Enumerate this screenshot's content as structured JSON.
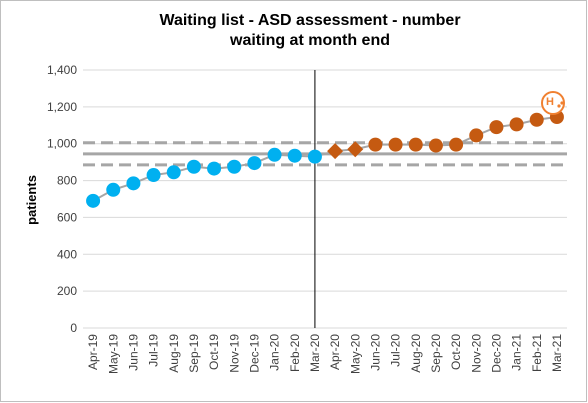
{
  "chart_data": {
    "type": "spc",
    "title": [
      "Waiting list - ASD assessment - number",
      "waiting at month end"
    ],
    "y_label": "patients",
    "categories": [
      "Apr-19",
      "May-19",
      "Jun-19",
      "Jul-19",
      "Aug-19",
      "Sep-19",
      "Oct-19",
      "Nov-19",
      "Dec-19",
      "Jan-20",
      "Feb-20",
      "Mar-20",
      "Apr-20",
      "May-20",
      "Jun-20",
      "Jul-20",
      "Aug-20",
      "Sep-20",
      "Oct-20",
      "Nov-20",
      "Dec-20",
      "Jan-21",
      "Feb-21",
      "Mar-21"
    ],
    "values": [
      690,
      750,
      785,
      830,
      845,
      875,
      865,
      875,
      895,
      940,
      935,
      930,
      960,
      970,
      995,
      995,
      995,
      990,
      995,
      1045,
      1090,
      1105,
      1130,
      1145
    ],
    "colors": [
      "#00b0f0",
      "#00b0f0",
      "#00b0f0",
      "#00b0f0",
      "#00b0f0",
      "#00b0f0",
      "#00b0f0",
      "#00b0f0",
      "#00b0f0",
      "#00b0f0",
      "#00b0f0",
      "#00b0f0",
      "#c55a11",
      "#c55a11",
      "#c55a11",
      "#c55a11",
      "#c55a11",
      "#c55a11",
      "#c55a11",
      "#c55a11",
      "#c55a11",
      "#c55a11",
      "#c55a11",
      "#c55a11"
    ],
    "markers": [
      "circle",
      "circle",
      "circle",
      "circle",
      "circle",
      "circle",
      "circle",
      "circle",
      "circle",
      "circle",
      "circle",
      "circle",
      "diamond",
      "diamond",
      "circle",
      "circle",
      "circle",
      "circle",
      "circle",
      "circle",
      "circle",
      "circle",
      "circle",
      "circle"
    ],
    "mean": 945,
    "ucl": 1005,
    "lcl": 885,
    "ylim": [
      0,
      1400
    ],
    "yticks": [
      0,
      200,
      400,
      600,
      800,
      {
        "value": 1000,
        "label": "1,000"
      },
      {
        "value": 1200,
        "label": "1,200"
      },
      {
        "value": 1400,
        "label": "1,400"
      }
    ],
    "grid": true,
    "icon_label": "H"
  }
}
